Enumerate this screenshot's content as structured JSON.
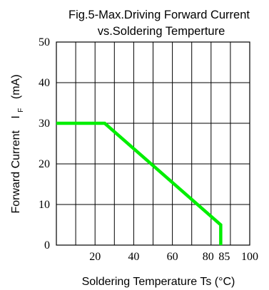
{
  "chart_data": {
    "type": "line",
    "title_line1": "Fig.5-Max.Driving Forward Current",
    "title_line2": "vs.Soldering Temperture",
    "xlabel": "Soldering Temperature Ts (°C)",
    "ylabel_main": "Forward Current",
    "ylabel_symbol": "I",
    "ylabel_subscript": "F",
    "ylabel_unit": "(mA)",
    "xlim": [
      0,
      100
    ],
    "ylim": [
      0,
      50
    ],
    "x_ticks": [
      {
        "value": 20,
        "label": "20"
      },
      {
        "value": 40,
        "label": "40"
      },
      {
        "value": 60,
        "label": "60"
      },
      {
        "value": 80,
        "label": "80"
      },
      {
        "value": 85,
        "label": "85"
      },
      {
        "value": 100,
        "label": "100"
      }
    ],
    "y_ticks": [
      {
        "value": 0,
        "label": "0"
      },
      {
        "value": 10,
        "label": "10"
      },
      {
        "value": 20,
        "label": "20"
      },
      {
        "value": 30,
        "label": "30"
      },
      {
        "value": 40,
        "label": "40"
      },
      {
        "value": 50,
        "label": "50"
      }
    ],
    "x_grid": [
      10,
      20,
      30,
      40,
      50,
      60,
      70,
      80,
      90
    ],
    "y_grid": [
      10,
      20,
      30,
      40
    ],
    "grid": true,
    "series": [
      {
        "color": "#00ee00",
        "x": [
          0,
          25,
          85,
          85
        ],
        "y": [
          30,
          30,
          5,
          0
        ]
      }
    ]
  }
}
